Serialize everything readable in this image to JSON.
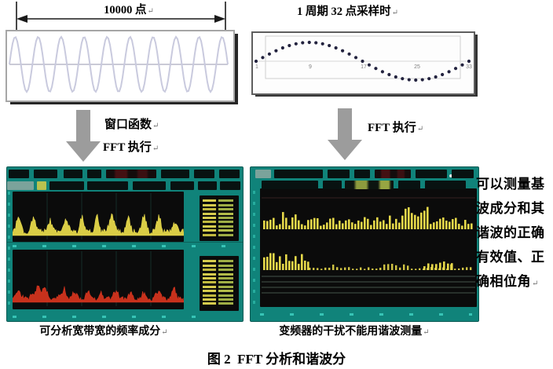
{
  "pilcrow": "↵",
  "colors": {
    "teal": "#10837a",
    "panel": "#0b0b0b",
    "yellow": "#e6d84a",
    "red": "#d2341e",
    "sine": "#c9cade",
    "dot": "#23233f",
    "arrow_gray": "#9c9c9c"
  },
  "window_sample": {
    "label": "10000 点"
  },
  "cycle_sample": {
    "title": "1 周期 32 点采样时",
    "tick_labels": [
      "1",
      "9",
      "17",
      "25",
      "33"
    ]
  },
  "flow": {
    "left_arrow": {
      "line1": "窗口函数",
      "line2": "FFT 执行"
    },
    "right_arrow": {
      "label": "FFT 执行"
    }
  },
  "scopes": {
    "left": {
      "caption": "可分析宽带宽的频率成分"
    },
    "right": {
      "caption": "变频器的干扰不能用谐波测量"
    }
  },
  "side_note": {
    "lines": [
      "可以测量基",
      "波成分和其",
      "谐波的正确",
      "有效值、正",
      "确相位角"
    ]
  },
  "figure_caption": "图 2  FFT 分析和谐波分",
  "chart_data": [
    {
      "type": "line",
      "label": "10000 点",
      "waveform": "sine",
      "cycles": 9.5
    },
    {
      "type": "scatter",
      "label": "1 周期 32 点采样时",
      "waveform": "sine",
      "cycles": 1,
      "n_points": 33,
      "x_ticks": [
        "1",
        "9",
        "17",
        "25",
        "33"
      ]
    },
    {
      "type": "area",
      "label": "可分析宽带宽的频率成分",
      "series": [
        {
          "name": "upper-trace",
          "color": "#e6d84a"
        },
        {
          "name": "lower-trace",
          "color": "#d2341e"
        }
      ]
    },
    {
      "type": "bar",
      "label": "变频器的干扰不能用谐波测量",
      "series": [
        {
          "name": "spectrum-bars",
          "color": "#e6d84a"
        }
      ]
    }
  ]
}
